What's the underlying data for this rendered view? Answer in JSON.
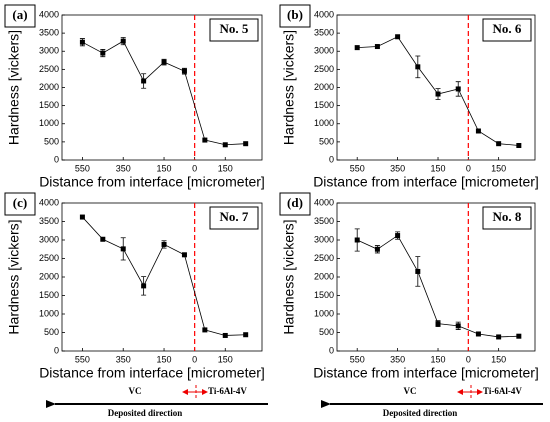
{
  "chart_data": [
    {
      "type": "line",
      "panel_label": "(a)",
      "sample_label": "No. 5",
      "xlabel": "Distance from interface [micrometer]",
      "ylabel": "Hardness [vickers]",
      "x": [
        -550,
        -450,
        -350,
        -250,
        -150,
        -50,
        50,
        150,
        250
      ],
      "values": [
        3250,
        2950,
        3280,
        2180,
        2700,
        2450,
        550,
        420,
        450
      ],
      "errors": [
        100,
        100,
        100,
        200,
        80,
        80,
        null,
        null,
        null
      ],
      "color": "#000000",
      "vline": {
        "x": 0,
        "color": "#ff0000"
      },
      "xlim": [
        -650,
        330
      ],
      "ylim": [
        0,
        4000
      ],
      "xticks": [
        {
          "value": -550,
          "label": "550"
        },
        {
          "value": -350,
          "label": "350"
        },
        {
          "value": -150,
          "label": "150"
        },
        0,
        150
      ],
      "yticks": [
        0,
        500,
        1000,
        1500,
        2000,
        2500,
        3000,
        3500,
        4000
      ]
    },
    {
      "type": "line",
      "panel_label": "(b)",
      "sample_label": "No. 6",
      "xlabel": "Distance from interface [micrometer]",
      "ylabel": "Hardness [vickers]",
      "x": [
        -550,
        -450,
        -350,
        -250,
        -150,
        -50,
        50,
        150,
        250
      ],
      "values": [
        3100,
        3130,
        3400,
        2570,
        1820,
        1960,
        800,
        450,
        400
      ],
      "errors": [
        null,
        null,
        null,
        300,
        150,
        200,
        null,
        null,
        null
      ],
      "color": "#000000",
      "vline": {
        "x": 0,
        "color": "#ff0000"
      },
      "xlim": [
        -650,
        330
      ],
      "ylim": [
        0,
        4000
      ],
      "xticks": [
        {
          "value": -550,
          "label": "550"
        },
        {
          "value": -350,
          "label": "350"
        },
        {
          "value": -150,
          "label": "150"
        },
        0,
        150
      ],
      "yticks": [
        0,
        500,
        1000,
        1500,
        2000,
        2500,
        3000,
        3500,
        4000
      ]
    },
    {
      "type": "line",
      "panel_label": "(c)",
      "sample_label": "No. 7",
      "xlabel": "Distance from interface [micrometer]",
      "ylabel": "Hardness [vickers]",
      "x": [
        -550,
        -450,
        -350,
        -250,
        -150,
        -50,
        50,
        150,
        250
      ],
      "values": [
        3620,
        3020,
        2760,
        1760,
        2880,
        2600,
        570,
        420,
        440
      ],
      "errors": [
        null,
        null,
        300,
        250,
        100,
        null,
        null,
        null,
        null
      ],
      "color": "#000000",
      "vline": {
        "x": 0,
        "color": "#ff0000"
      },
      "xlim": [
        -650,
        330
      ],
      "ylim": [
        0,
        4000
      ],
      "xticks": [
        {
          "value": -550,
          "label": "550"
        },
        {
          "value": -350,
          "label": "350"
        },
        {
          "value": -150,
          "label": "150"
        },
        0,
        150
      ],
      "yticks": [
        0,
        500,
        1000,
        1500,
        2000,
        2500,
        3000,
        3500,
        4000
      ]
    },
    {
      "type": "line",
      "panel_label": "(d)",
      "sample_label": "No. 8",
      "xlabel": "Distance from interface [micrometer]",
      "ylabel": "Hardness [vickers]",
      "x": [
        -550,
        -450,
        -350,
        -250,
        -150,
        -50,
        50,
        150,
        250
      ],
      "values": [
        3000,
        2750,
        3120,
        2150,
        740,
        680,
        460,
        380,
        400
      ],
      "errors": [
        300,
        100,
        100,
        400,
        80,
        100,
        null,
        null,
        null
      ],
      "color": "#000000",
      "vline": {
        "x": 0,
        "color": "#ff0000"
      },
      "xlim": [
        -650,
        330
      ],
      "ylim": [
        0,
        4000
      ],
      "xticks": [
        {
          "value": -550,
          "label": "550"
        },
        {
          "value": -350,
          "label": "350"
        },
        {
          "value": -150,
          "label": "150"
        },
        0,
        150
      ],
      "yticks": [
        0,
        500,
        1000,
        1500,
        2000,
        2500,
        3000,
        3500,
        4000
      ]
    }
  ],
  "bottom": [
    {
      "left_label": "VC",
      "right_label": "Ti-6Al-4V",
      "arrow_label": "Deposited direction"
    },
    {
      "left_label": "VC",
      "right_label": "Ti-6Al-4V",
      "arrow_label": "Deposited direction"
    }
  ]
}
